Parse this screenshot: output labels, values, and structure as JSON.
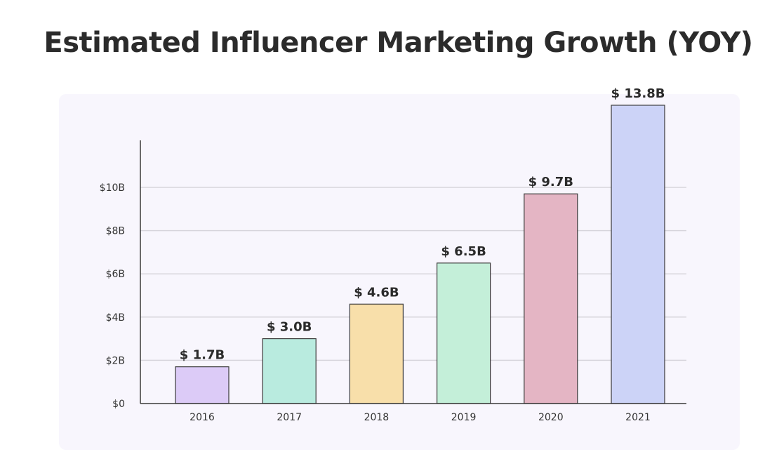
{
  "chart_data": {
    "type": "bar",
    "title": "Estimated Influencer Marketing Growth (YOY)",
    "xlabel": "",
    "ylabel": "",
    "categories": [
      "2016",
      "2017",
      "2018",
      "2019",
      "2020",
      "2021"
    ],
    "values": [
      1.7,
      3.0,
      4.6,
      6.5,
      9.7,
      13.8
    ],
    "data_labels": [
      "$ 1.7B",
      "$ 3.0B",
      "$ 4.6B",
      "$ 6.5B",
      "$ 9.7B",
      "$ 13.8B"
    ],
    "bar_colors": [
      "#dccbf7",
      "#b9ebdf",
      "#f8dfaa",
      "#c4efd9",
      "#e4b5c4",
      "#ccd3f7"
    ],
    "yticks": [
      0,
      2,
      4,
      6,
      8,
      10
    ],
    "ytick_labels": [
      "$0",
      "$2B",
      "$4B",
      "$6B",
      "$8B",
      "$10B"
    ],
    "ylim": [
      0,
      12
    ],
    "grid": true,
    "legend": "none"
  }
}
